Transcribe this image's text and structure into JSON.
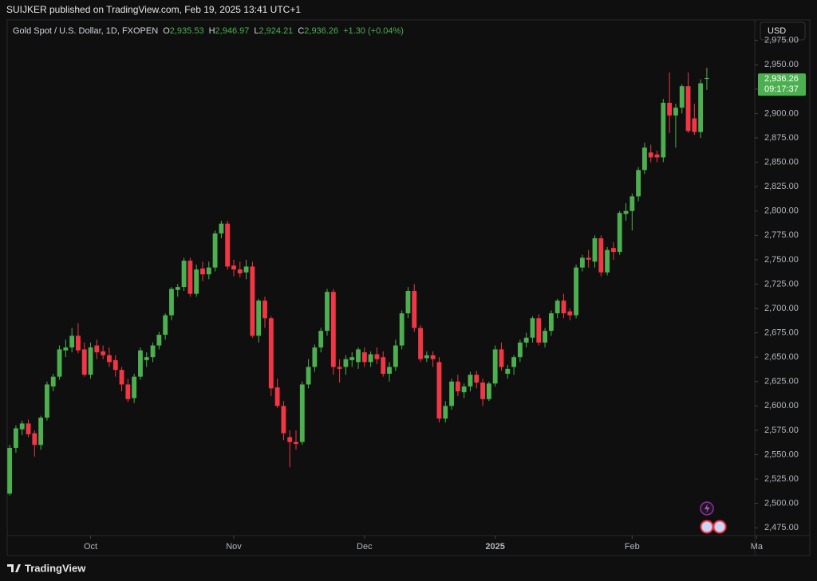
{
  "header": {
    "publisher": "SUIJKER published on TradingView.com, Feb 19, 2025 13:41 UTC+1",
    "symbol": "Gold Spot / U.S. Dollar, 1D, FXOPEN",
    "ohlc": [
      {
        "key": "O",
        "label": "2,935.53"
      },
      {
        "key": "H",
        "label": "2,946.97"
      },
      {
        "key": "L",
        "label": "2,924.21"
      },
      {
        "key": "C",
        "label": "2,936.26"
      }
    ],
    "change": "+1.30 (+0.04%)",
    "currency": "USD",
    "footer": "TradingView"
  },
  "chart_data": {
    "type": "candlestick",
    "up_color": "#4caf50",
    "down_color": "#f23645",
    "x": [
      0,
      1,
      2,
      3,
      4,
      5,
      6,
      7,
      8,
      9,
      10,
      11,
      12,
      13,
      14,
      15,
      16,
      17,
      18,
      19,
      20,
      21,
      22,
      23,
      24,
      25,
      26,
      27,
      28,
      29,
      30,
      31,
      32,
      33,
      34,
      35,
      36,
      37,
      38,
      39,
      40,
      41,
      42,
      43,
      44,
      45,
      46,
      47,
      48,
      49,
      50,
      51,
      52,
      53,
      54,
      55,
      56,
      57,
      58,
      59,
      60,
      61,
      62,
      63,
      64,
      65,
      66,
      67,
      68,
      69,
      70,
      71,
      72,
      73,
      74,
      75,
      76,
      77,
      78,
      79,
      80,
      81,
      82,
      83,
      84,
      85,
      86,
      87,
      88,
      89,
      90,
      91,
      92,
      93,
      94,
      95,
      96,
      97,
      98,
      99,
      100,
      101,
      102,
      103,
      104,
      105,
      106,
      107,
      108,
      109,
      110,
      111,
      112
    ],
    "open": [
      2510,
      2557,
      2576,
      2582,
      2572,
      2560,
      2588,
      2620,
      2630,
      2657,
      2660,
      2672,
      2658,
      2632,
      2662,
      2656,
      2652,
      2647,
      2637,
      2622,
      2608,
      2630,
      2647,
      2650,
      2662,
      2673,
      2693,
      2719,
      2722,
      2749,
      2715,
      2741,
      2735,
      2742,
      2777,
      2787,
      2744,
      2740,
      2737,
      2743,
      2672,
      2708,
      2690,
      2619,
      2600,
      2568,
      2563,
      2563,
      2622,
      2640,
      2660,
      2677,
      2717,
      2640,
      2640,
      2647,
      2645,
      2655,
      2645,
      2653,
      2650,
      2633,
      2640,
      2662,
      2695,
      2718,
      2680,
      2649,
      2652,
      2645,
      2587,
      2600,
      2625,
      2614,
      2620,
      2632,
      2624,
      2607,
      2623,
      2658,
      2633,
      2640,
      2650,
      2665,
      2670,
      2690,
      2665,
      2677,
      2695,
      2708,
      2697,
      2693,
      2742,
      2752,
      2748,
      2772,
      2737,
      2762,
      2758,
      2797,
      2800,
      2815,
      2842,
      2860,
      2858,
      2855,
      2911,
      2898,
      2906,
      2928,
      2895,
      2881,
      2935.53
    ],
    "high": [
      2560,
      2580,
      2585,
      2586,
      2575,
      2590,
      2625,
      2633,
      2662,
      2668,
      2680,
      2685,
      2665,
      2665,
      2668,
      2662,
      2660,
      2652,
      2640,
      2628,
      2633,
      2660,
      2655,
      2665,
      2676,
      2695,
      2722,
      2725,
      2752,
      2752,
      2745,
      2748,
      2748,
      2780,
      2790,
      2790,
      2750,
      2748,
      2750,
      2748,
      2710,
      2712,
      2692,
      2628,
      2605,
      2575,
      2575,
      2625,
      2648,
      2663,
      2680,
      2720,
      2720,
      2648,
      2652,
      2655,
      2660,
      2660,
      2656,
      2660,
      2656,
      2645,
      2668,
      2698,
      2722,
      2725,
      2683,
      2656,
      2656,
      2650,
      2605,
      2628,
      2632,
      2623,
      2635,
      2636,
      2628,
      2625,
      2662,
      2665,
      2642,
      2652,
      2668,
      2675,
      2692,
      2694,
      2680,
      2698,
      2710,
      2715,
      2700,
      2745,
      2755,
      2760,
      2775,
      2775,
      2763,
      2768,
      2800,
      2808,
      2818,
      2845,
      2870,
      2868,
      2862,
      2915,
      2942,
      2910,
      2930,
      2942,
      2910,
      2935,
      2946.97
    ],
    "low": [
      2508,
      2552,
      2570,
      2568,
      2548,
      2555,
      2585,
      2615,
      2627,
      2650,
      2655,
      2654,
      2630,
      2628,
      2648,
      2648,
      2640,
      2630,
      2615,
      2604,
      2603,
      2627,
      2640,
      2645,
      2658,
      2668,
      2688,
      2712,
      2718,
      2712,
      2712,
      2728,
      2730,
      2738,
      2772,
      2740,
      2733,
      2732,
      2730,
      2670,
      2665,
      2680,
      2610,
      2598,
      2565,
      2537,
      2555,
      2560,
      2618,
      2635,
      2655,
      2672,
      2632,
      2624,
      2632,
      2640,
      2638,
      2640,
      2640,
      2643,
      2630,
      2625,
      2636,
      2658,
      2690,
      2676,
      2645,
      2645,
      2640,
      2583,
      2583,
      2596,
      2610,
      2608,
      2615,
      2618,
      2600,
      2605,
      2620,
      2636,
      2628,
      2632,
      2645,
      2660,
      2665,
      2662,
      2660,
      2672,
      2690,
      2690,
      2688,
      2690,
      2738,
      2742,
      2742,
      2733,
      2734,
      2750,
      2755,
      2790,
      2780,
      2810,
      2838,
      2850,
      2850,
      2850,
      2880,
      2865,
      2900,
      2880,
      2878,
      2875,
      2924.21
    ],
    "close": [
      2557,
      2577,
      2582,
      2571,
      2560,
      2588,
      2622,
      2630,
      2658,
      2660,
      2672,
      2657,
      2632,
      2660,
      2655,
      2652,
      2645,
      2637,
      2622,
      2607,
      2630,
      2657,
      2650,
      2662,
      2673,
      2693,
      2720,
      2722,
      2749,
      2715,
      2740,
      2735,
      2742,
      2777,
      2787,
      2743,
      2740,
      2736,
      2743,
      2672,
      2708,
      2690,
      2618,
      2600,
      2572,
      2563,
      2561,
      2622,
      2640,
      2660,
      2677,
      2717,
      2640,
      2638,
      2648,
      2650,
      2658,
      2645,
      2653,
      2648,
      2633,
      2640,
      2662,
      2695,
      2718,
      2680,
      2648,
      2652,
      2648,
      2587,
      2600,
      2625,
      2615,
      2620,
      2632,
      2624,
      2607,
      2623,
      2658,
      2640,
      2638,
      2650,
      2665,
      2670,
      2690,
      2665,
      2677,
      2695,
      2708,
      2695,
      2693,
      2742,
      2752,
      2750,
      2772,
      2737,
      2760,
      2758,
      2798,
      2800,
      2815,
      2842,
      2865,
      2855,
      2855,
      2911,
      2898,
      2906,
      2928,
      2882,
      2881,
      2931,
      2936.26
    ],
    "xlim": [
      -0.4,
      119.7
    ],
    "xticks": [
      {
        "value": 13,
        "label": "Oct"
      },
      {
        "value": 36,
        "label": "Nov"
      },
      {
        "value": 57,
        "label": "Dec"
      },
      {
        "value": 78,
        "label": "2025"
      },
      {
        "value": 100,
        "label": "Feb"
      },
      {
        "value": 120,
        "label": "Ma"
      }
    ],
    "ylim": [
      2467,
      2996
    ],
    "yticks": [
      {
        "value": 2475,
        "label": "2,475.00"
      },
      {
        "value": 2500,
        "label": "2,500.00"
      },
      {
        "value": 2525,
        "label": "2,525.00"
      },
      {
        "value": 2550,
        "label": "2,550.00"
      },
      {
        "value": 2575,
        "label": "2,575.00"
      },
      {
        "value": 2600,
        "label": "2,600.00"
      },
      {
        "value": 2625,
        "label": "2,625.00"
      },
      {
        "value": 2650,
        "label": "2,650.00"
      },
      {
        "value": 2675,
        "label": "2,675.00"
      },
      {
        "value": 2700,
        "label": "2,700.00"
      },
      {
        "value": 2725,
        "label": "2,725.00"
      },
      {
        "value": 2750,
        "label": "2,750.00"
      },
      {
        "value": 2775,
        "label": "2,775.00"
      },
      {
        "value": 2800,
        "label": "2,800.00"
      },
      {
        "value": 2825,
        "label": "2,825.00"
      },
      {
        "value": 2850,
        "label": "2,850.00"
      },
      {
        "value": 2875,
        "label": "2,875.00"
      },
      {
        "value": 2900,
        "label": "2,900.00"
      },
      {
        "value": 2925,
        "label": "2,925.00"
      },
      {
        "value": 2950,
        "label": "2,950.00"
      },
      {
        "value": 2975,
        "label": "2,975.00"
      }
    ],
    "price_label": {
      "value": 2936.26,
      "label": "2,936.26"
    },
    "countdown": "09:17:37"
  }
}
